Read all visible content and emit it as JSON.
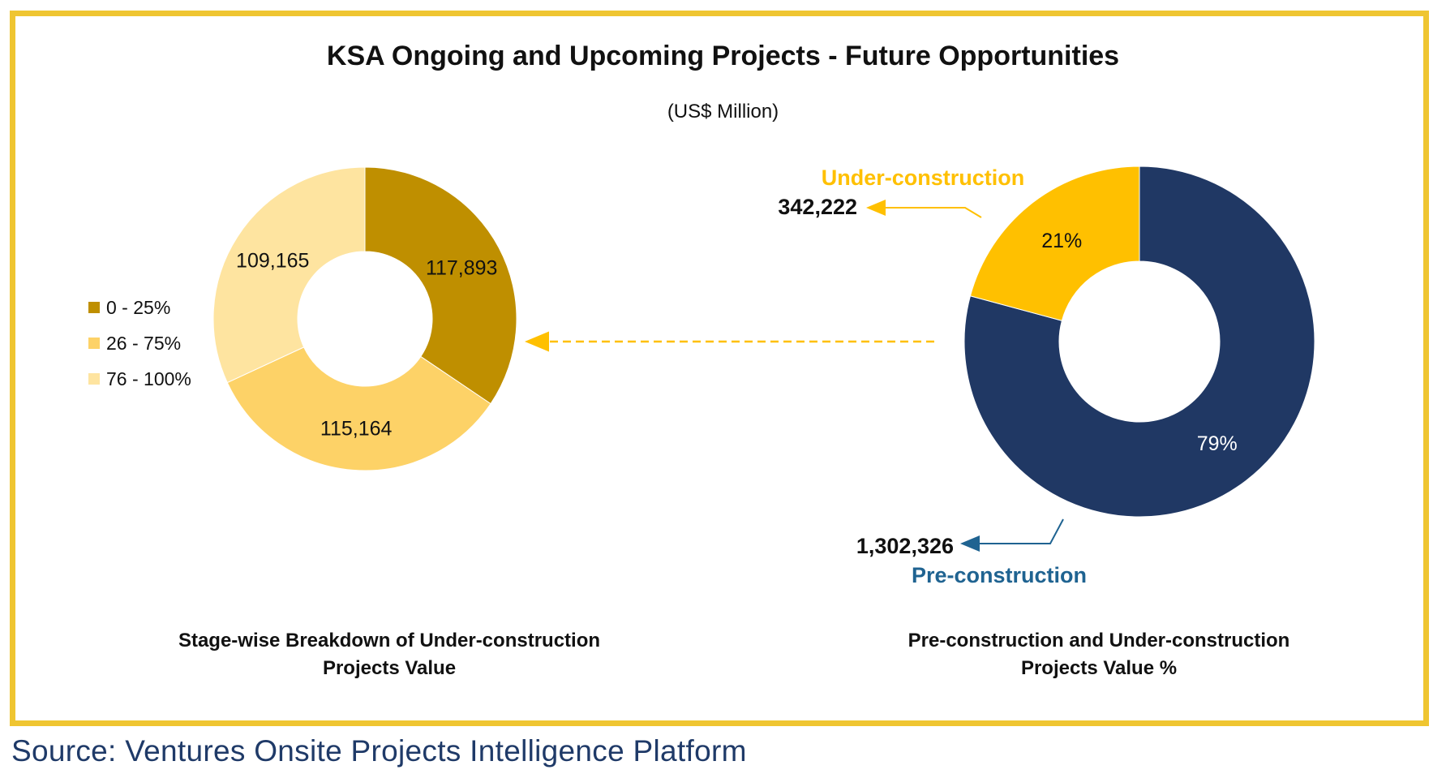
{
  "title": "KSA Ongoing and Upcoming Projects - Future Opportunities",
  "subtitle": "(US$ Million)",
  "source": "Source: Ventures Onsite Projects Intelligence Platform",
  "colors": {
    "frame": "#EFC531",
    "stage_0_25": "#BF8F00",
    "stage_26_75": "#FDD267",
    "stage_76_100": "#FEE4A0",
    "under_construction": "#FFC000",
    "pre_construction": "#203864",
    "pre_construction_label": "#1F6391"
  },
  "chart_data": [
    {
      "type": "pie",
      "variant": "donut",
      "caption_line1": "Stage-wise Breakdown of Under-construction",
      "caption_line2": "Projects Value",
      "legend_position": "left",
      "slices": [
        {
          "name": "0 - 25%",
          "value": 117893,
          "label": "117,893",
          "color": "#BF8F00"
        },
        {
          "name": "26 - 75%",
          "value": 115164,
          "label": "115,164",
          "color": "#FDD267"
        },
        {
          "name": "76 - 100%",
          "value": 109165,
          "label": "109,165",
          "color": "#FEE4A0"
        }
      ]
    },
    {
      "type": "pie",
      "variant": "donut",
      "caption_line1": "Pre-construction and Under-construction",
      "caption_line2": "Projects Value %",
      "slices": [
        {
          "name": "Pre-construction",
          "value": 1302326,
          "value_label": "1,302,326",
          "percent": 79,
          "percent_label": "79%",
          "color": "#203864"
        },
        {
          "name": "Under-construction",
          "value": 342222,
          "value_label": "342,222",
          "percent": 21,
          "percent_label": "21%",
          "color": "#FFC000"
        }
      ]
    }
  ]
}
